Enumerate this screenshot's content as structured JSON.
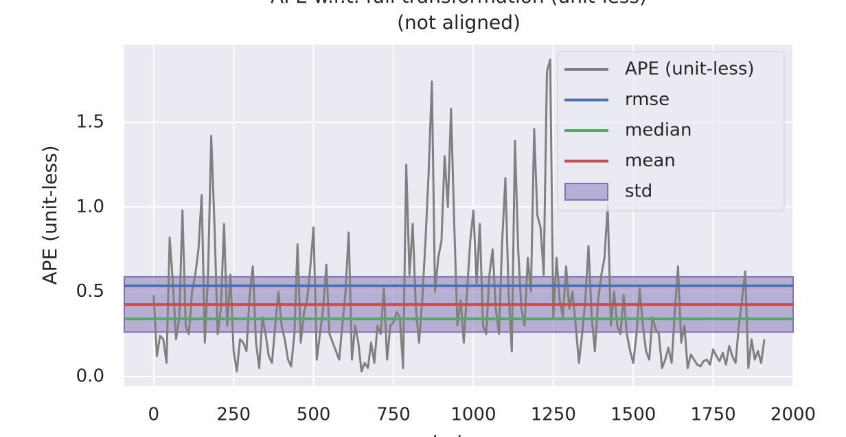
{
  "chart_data": {
    "type": "line",
    "title": "APE w.r.t. full transformation (unit-less)",
    "subtitle": "(not aligned)",
    "x_label": "index",
    "y_label": "APE (unit-less)",
    "x": [
      0,
      10,
      20,
      30,
      40,
      50,
      60,
      70,
      80,
      90,
      100,
      110,
      120,
      130,
      140,
      150,
      160,
      170,
      180,
      190,
      200,
      210,
      220,
      230,
      240,
      250,
      260,
      270,
      280,
      290,
      300,
      310,
      320,
      330,
      340,
      350,
      360,
      370,
      380,
      390,
      400,
      410,
      420,
      430,
      440,
      450,
      460,
      470,
      480,
      490,
      500,
      510,
      520,
      530,
      540,
      550,
      560,
      570,
      580,
      590,
      600,
      610,
      620,
      630,
      640,
      650,
      660,
      670,
      680,
      690,
      700,
      710,
      720,
      730,
      740,
      750,
      760,
      770,
      780,
      790,
      800,
      810,
      820,
      830,
      840,
      850,
      860,
      870,
      880,
      890,
      900,
      910,
      920,
      930,
      940,
      950,
      960,
      970,
      980,
      990,
      1000,
      1010,
      1020,
      1030,
      1040,
      1050,
      1060,
      1070,
      1080,
      1090,
      1100,
      1110,
      1120,
      1130,
      1140,
      1150,
      1160,
      1170,
      1180,
      1190,
      1200,
      1210,
      1220,
      1230,
      1240,
      1250,
      1260,
      1270,
      1280,
      1290,
      1300,
      1310,
      1320,
      1330,
      1340,
      1350,
      1360,
      1370,
      1380,
      1390,
      1400,
      1410,
      1420,
      1430,
      1440,
      1450,
      1460,
      1470,
      1480,
      1490,
      1500,
      1510,
      1520,
      1530,
      1540,
      1550,
      1560,
      1570,
      1580,
      1590,
      1600,
      1610,
      1620,
      1630,
      1640,
      1650,
      1660,
      1670,
      1680,
      1690,
      1700,
      1710,
      1720,
      1730,
      1740,
      1750,
      1760,
      1770,
      1780,
      1790,
      1800,
      1810,
      1820,
      1830,
      1840,
      1850,
      1860,
      1870,
      1880,
      1890,
      1900,
      1910
    ],
    "series": [
      {
        "name": "APE (unit-less)",
        "color": "#808080",
        "values": [
          0.48,
          0.12,
          0.24,
          0.22,
          0.08,
          0.82,
          0.55,
          0.22,
          0.35,
          0.98,
          0.3,
          0.25,
          0.5,
          0.6,
          0.75,
          1.07,
          0.2,
          0.6,
          1.42,
          0.9,
          0.25,
          0.4,
          0.9,
          0.3,
          0.6,
          0.15,
          0.03,
          0.22,
          0.2,
          0.15,
          0.48,
          0.65,
          0.2,
          0.05,
          0.35,
          0.25,
          0.12,
          0.08,
          0.3,
          0.5,
          0.3,
          0.22,
          0.1,
          0.06,
          0.25,
          0.78,
          0.2,
          0.38,
          0.45,
          0.65,
          0.88,
          0.1,
          0.25,
          0.4,
          0.66,
          0.25,
          0.2,
          0.15,
          0.1,
          0.3,
          0.5,
          0.85,
          0.1,
          0.3,
          0.2,
          0.03,
          0.08,
          0.05,
          0.2,
          0.08,
          0.3,
          0.25,
          0.52,
          0.1,
          0.3,
          0.32,
          0.38,
          0.35,
          0.05,
          1.25,
          0.6,
          0.9,
          0.4,
          0.2,
          0.45,
          0.8,
          1.2,
          1.74,
          0.5,
          0.7,
          0.8,
          1.3,
          1.0,
          1.58,
          0.9,
          0.3,
          0.45,
          0.2,
          0.5,
          0.8,
          0.98,
          0.55,
          0.9,
          0.3,
          0.25,
          0.6,
          0.75,
          0.4,
          0.25,
          0.8,
          1.17,
          0.5,
          0.15,
          1.39,
          0.75,
          0.4,
          0.3,
          0.7,
          0.5,
          1.46,
          0.95,
          0.88,
          0.6,
          1.8,
          1.87,
          0.35,
          0.7,
          0.45,
          0.35,
          0.65,
          0.4,
          0.5,
          0.3,
          0.08,
          0.25,
          0.45,
          0.77,
          0.35,
          0.15,
          0.45,
          0.6,
          0.7,
          1.01,
          0.3,
          0.5,
          0.3,
          0.25,
          0.48,
          0.25,
          0.15,
          0.08,
          0.25,
          0.52,
          0.3,
          0.15,
          0.1,
          0.35,
          0.28,
          0.25,
          0.05,
          0.1,
          0.17,
          0.08,
          0.38,
          0.65,
          0.2,
          0.3,
          0.05,
          0.13,
          0.1,
          0.07,
          0.06,
          0.09,
          0.1,
          0.07,
          0.16,
          0.12,
          0.09,
          0.14,
          0.07,
          0.18,
          0.12,
          0.08,
          0.3,
          0.45,
          0.62,
          0.05,
          0.22,
          0.1,
          0.15,
          0.08,
          0.22
        ]
      }
    ],
    "reference_lines": [
      {
        "name": "rmse",
        "color": "#4c72b0",
        "value": 0.535
      },
      {
        "name": "median",
        "color": "#55a868",
        "value": 0.34
      },
      {
        "name": "mean",
        "color": "#c44e52",
        "value": 0.425
      }
    ],
    "band": {
      "name": "std",
      "color": "#8172b3",
      "std": 0.163
    },
    "xlim": [
      -92,
      2000
    ],
    "ylim": [
      -0.057,
      1.958
    ],
    "xticks": [
      0,
      250,
      500,
      750,
      1000,
      1250,
      1500,
      1750,
      2000
    ],
    "yticks": [
      {
        "value": 0,
        "label": "0.0"
      },
      0.5,
      {
        "value": 1,
        "label": "1.0"
      },
      1.5
    ],
    "grid": true,
    "legend": "upper right"
  }
}
